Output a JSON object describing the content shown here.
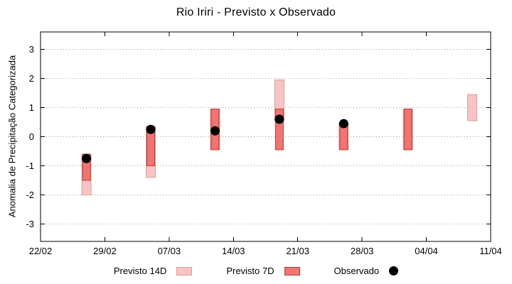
{
  "title": "Rio Iriri - Previsto x Observado",
  "ylabel": "Anomalia de Precipitação Categorizada",
  "legend": [
    {
      "label": "Previsto 14D"
    },
    {
      "label": "Previsto 7D"
    },
    {
      "label": "Observado"
    }
  ],
  "chart_data": {
    "type": "bar",
    "title": "Rio Iriri - Previsto x Observado",
    "xlabel": "",
    "ylabel": "Anomalia de Precipitação Categorizada",
    "x_tick_labels": [
      "22/02",
      "29/02",
      "07/03",
      "14/03",
      "21/03",
      "28/03",
      "04/04",
      "11/04"
    ],
    "x_tick_days": [
      0,
      7,
      14,
      21,
      28,
      35,
      42,
      49
    ],
    "xlim_days": [
      0,
      49
    ],
    "ylim": [
      -3.6,
      3.6
    ],
    "y_ticks": [
      -3,
      -2,
      -1,
      0,
      1,
      2,
      3
    ],
    "grid": "horizontal-dotted",
    "legend_position": "bottom-center",
    "frame_color": "#000000",
    "grid_color": "#9a9a9a",
    "series": [
      {
        "name": "Previsto 14D",
        "type": "range-bar",
        "fill": "#f7c4c2",
        "stroke": "#e09a98",
        "bars": [
          {
            "date": "27/02",
            "day": 5,
            "low": -2.0,
            "high": -0.6
          },
          {
            "date": "05/03",
            "day": 12,
            "low": -1.4,
            "high": 0.35
          },
          {
            "date": "12/03",
            "day": 19,
            "low": -0.45,
            "high": 0.95
          },
          {
            "date": "19/03",
            "day": 26,
            "low": 0.55,
            "high": 1.95
          },
          {
            "date": "26/03",
            "day": 33,
            "low": -0.45,
            "high": 0.45
          },
          {
            "date": "02/04",
            "day": 40,
            "low": -0.45,
            "high": 0.95
          },
          {
            "date": "09/04",
            "day": 47,
            "low": 0.55,
            "high": 1.45
          }
        ]
      },
      {
        "name": "Previsto 7D",
        "type": "range-bar",
        "fill": "#ee7572",
        "stroke": "#b23b35",
        "bars": [
          {
            "date": "27/02",
            "day": 5,
            "low": -1.5,
            "high": -0.6
          },
          {
            "date": "05/03",
            "day": 12,
            "low": -1.0,
            "high": 0.35
          },
          {
            "date": "12/03",
            "day": 19,
            "low": -0.45,
            "high": 0.95
          },
          {
            "date": "19/03",
            "day": 26,
            "low": -0.45,
            "high": 0.95
          },
          {
            "date": "26/03",
            "day": 33,
            "low": -0.45,
            "high": 0.45
          },
          {
            "date": "02/04",
            "day": 40,
            "low": -0.45,
            "high": 0.95
          }
        ]
      },
      {
        "name": "Observado",
        "type": "scatter",
        "fill": "#000000",
        "points": [
          {
            "date": "27/02",
            "day": 5,
            "value": -0.75
          },
          {
            "date": "05/03",
            "day": 12,
            "value": 0.25
          },
          {
            "date": "12/03",
            "day": 19,
            "value": 0.2
          },
          {
            "date": "19/03",
            "day": 26,
            "value": 0.6
          },
          {
            "date": "26/03",
            "day": 33,
            "value": 0.45
          }
        ]
      }
    ]
  }
}
